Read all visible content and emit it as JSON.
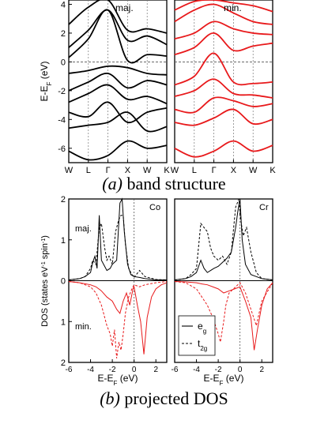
{
  "figure": {
    "panel_a": {
      "caption_label": "(a)",
      "caption_text": "band structure",
      "ylabel_main": "E-E",
      "ylabel_sub": "F",
      "ylabel_unit": " (eV)",
      "left_tag": "maj.",
      "right_tag": "min.",
      "yticks": [
        "-6",
        "-4",
        "-2",
        "0",
        "2",
        "4"
      ],
      "kpoints": [
        "W",
        "L",
        "Γ",
        "X",
        "W",
        "K"
      ],
      "colors": {
        "majority": "#000000",
        "minority": "#e8191b"
      }
    },
    "panel_b": {
      "caption_label": "(b)",
      "caption_text": "projected DOS",
      "ylabel": "DOS (states eV",
      "ylabel_sup1": "-1",
      "ylabel_mid": " spin",
      "ylabel_sup2": "-1",
      "ylabel_end": ")",
      "yticks_top": [
        "0",
        "1",
        "2"
      ],
      "yticks_bottom": [
        "1",
        "2"
      ],
      "xticks": [
        "-6",
        "-4",
        "-2",
        "0",
        "2"
      ],
      "xlabel_main": "E-E",
      "xlabel_sub": "F",
      "xlabel_unit": " (eV)",
      "left_title": "Co",
      "right_title": "Cr",
      "maj_tag": "maj.",
      "min_tag": "min.",
      "legend": [
        {
          "label": "e",
          "sub": "g",
          "style": "solid"
        },
        {
          "label": "t",
          "sub": "2g",
          "style": "dashed"
        }
      ]
    }
  },
  "chart_data": [
    {
      "type": "line",
      "title": "",
      "panel": "majority bands",
      "xlabel": "",
      "ylabel": "E-EF (eV)",
      "ylim": [
        -7,
        4.3
      ],
      "x_ticks": [
        "W",
        "L",
        "Γ",
        "X",
        "W",
        "K"
      ],
      "x_positions": [
        0,
        1,
        2,
        3,
        4,
        5
      ],
      "series": [
        {
          "values": [
            -6.2,
            -6.8,
            -6.5,
            -5.5,
            -6.0,
            -5.8
          ]
        },
        {
          "values": [
            -4.6,
            -4.4,
            -4.2,
            -3.5,
            -4.8,
            -4.5
          ]
        },
        {
          "values": [
            -3.5,
            -3.8,
            -2.8,
            -4.2,
            -3.5,
            -3.2
          ]
        },
        {
          "values": [
            -2.8,
            -2.2,
            -1.6,
            -2.6,
            -2.4,
            -2.9
          ]
        },
        {
          "values": [
            -2.0,
            -1.4,
            -0.8,
            -1.8,
            -1.3,
            -1.6
          ]
        },
        {
          "values": [
            -0.8,
            -0.6,
            -0.3,
            -0.4,
            -0.8,
            -0.9
          ]
        },
        {
          "values": [
            0.3,
            1.6,
            3.6,
            0.1,
            0.5,
            0.4
          ]
        },
        {
          "values": [
            1.0,
            2.2,
            3.6,
            1.5,
            1.8,
            1.2
          ]
        },
        {
          "values": [
            2.6,
            3.8,
            4.3,
            2.2,
            2.3,
            2.0
          ]
        }
      ],
      "fermi_level": 0
    },
    {
      "type": "line",
      "title": "",
      "panel": "minority bands",
      "xlabel": "",
      "ylabel": "",
      "ylim": [
        -7,
        4.3
      ],
      "x_ticks": [
        "W",
        "L",
        "Γ",
        "X",
        "W",
        "K"
      ],
      "x_positions": [
        0,
        1,
        2,
        3,
        4,
        5
      ],
      "series": [
        {
          "values": [
            -6.0,
            -6.6,
            -6.2,
            -5.5,
            -6.2,
            -5.8
          ]
        },
        {
          "values": [
            -4.2,
            -4.4,
            -3.9,
            -3.3,
            -4.3,
            -4.0
          ]
        },
        {
          "values": [
            -3.3,
            -3.5,
            -2.5,
            -2.7,
            -3.1,
            -2.9
          ]
        },
        {
          "values": [
            -2.4,
            -2.0,
            -1.2,
            -2.2,
            -2.3,
            -2.5
          ]
        },
        {
          "values": [
            -1.6,
            -1.0,
            0.6,
            -1.4,
            -1.5,
            -1.4
          ]
        },
        {
          "values": [
            0.5,
            1.0,
            2.0,
            0.8,
            1.1,
            1.3
          ]
        },
        {
          "values": [
            1.6,
            2.0,
            2.8,
            2.3,
            2.0,
            1.9
          ]
        },
        {
          "values": [
            2.8,
            3.6,
            4.0,
            3.4,
            2.8,
            2.6
          ]
        },
        {
          "values": [
            3.6,
            4.2,
            4.3,
            4.1,
            3.9,
            3.5
          ]
        }
      ],
      "fermi_level": 0
    },
    {
      "type": "line",
      "title": "Co",
      "xlabel": "E-EF (eV)",
      "ylabel": "DOS (states eV-1 spin-1)",
      "xlim": [
        -6,
        3
      ],
      "ylim": [
        -2,
        2
      ],
      "series": [
        {
          "name": "eg",
          "style": "solid",
          "spin": "maj",
          "x": [
            -6,
            -5,
            -4.5,
            -4,
            -3.8,
            -3.6,
            -3.4,
            -3.2,
            -3,
            -2.7,
            -2.5,
            -2.2,
            -2,
            -1.6,
            -1.3,
            -1.1,
            -0.9,
            -0.6,
            -0.3,
            0,
            0.5,
            1,
            2,
            3
          ],
          "values": [
            0.02,
            0.05,
            0.1,
            0.2,
            0.45,
            0.6,
            0.3,
            1.6,
            0.5,
            0.35,
            0.25,
            0.3,
            0.4,
            0.5,
            1.9,
            2.0,
            1.2,
            0.4,
            0.15,
            0.1,
            0.08,
            0.05,
            0.02,
            0.02
          ]
        },
        {
          "name": "t2g",
          "style": "dashed",
          "spin": "maj",
          "x": [
            -6,
            -5,
            -4.5,
            -4,
            -3.8,
            -3.5,
            -3.2,
            -3,
            -2.7,
            -2.5,
            -2.3,
            -2,
            -1.7,
            -1.4,
            -1.2,
            -1,
            -0.8,
            -0.5,
            -0.2,
            0,
            0.5,
            1,
            2,
            3
          ],
          "values": [
            0.02,
            0.05,
            0.1,
            0.3,
            0.5,
            0.4,
            1.3,
            1.4,
            0.8,
            0.5,
            0.6,
            0.4,
            1.2,
            1.5,
            1.6,
            1.6,
            0.9,
            0.3,
            0.15,
            0.08,
            0.25,
            0.1,
            0.03,
            0.02
          ]
        },
        {
          "name": "eg",
          "style": "solid",
          "spin": "min",
          "x": [
            -6,
            -5,
            -4,
            -3.5,
            -3,
            -2.5,
            -2,
            -1.6,
            -1.3,
            -1,
            -0.7,
            -0.4,
            -0.1,
            0,
            0.3,
            0.6,
            0.9,
            1.2,
            1.6,
            2,
            2.5,
            3
          ],
          "values": [
            -0.02,
            -0.05,
            -0.1,
            -0.15,
            -0.25,
            -0.4,
            -0.5,
            -0.7,
            -0.8,
            -0.5,
            -0.3,
            -0.6,
            -0.2,
            -0.15,
            -0.6,
            -1.0,
            -1.8,
            -0.9,
            -0.4,
            -0.2,
            -0.1,
            -0.05
          ]
        },
        {
          "name": "t2g",
          "style": "dashed",
          "spin": "min",
          "x": [
            -6,
            -5,
            -4,
            -3.5,
            -3,
            -2.7,
            -2.5,
            -2.2,
            -2,
            -1.8,
            -1.6,
            -1.4,
            -1.2,
            -1,
            -0.8,
            -0.5,
            -0.2,
            0,
            0.5,
            1,
            2,
            3
          ],
          "values": [
            -0.02,
            -0.05,
            -0.15,
            -0.3,
            -0.6,
            -0.9,
            -1.1,
            -1.3,
            -1.6,
            -1.2,
            -1.9,
            -1.5,
            -1.7,
            -1.3,
            -0.8,
            -0.4,
            -0.2,
            -0.1,
            -0.15,
            -0.1,
            -0.05,
            -0.02
          ]
        }
      ],
      "annotations": [
        "maj.",
        "min."
      ]
    },
    {
      "type": "line",
      "title": "Cr",
      "xlabel": "E-EF (eV)",
      "ylabel": "",
      "xlim": [
        -6,
        3
      ],
      "ylim": [
        -2,
        2
      ],
      "series": [
        {
          "name": "eg",
          "style": "solid",
          "spin": "maj",
          "x": [
            -6,
            -5,
            -4.5,
            -4,
            -3.6,
            -3.3,
            -3,
            -2.7,
            -2.4,
            -2,
            -1.6,
            -1.2,
            -0.8,
            -0.4,
            -0.2,
            0,
            0.2,
            0.5,
            1,
            2,
            3
          ],
          "values": [
            0.02,
            0.05,
            0.1,
            0.2,
            0.5,
            0.3,
            0.2,
            0.25,
            0.3,
            0.35,
            0.45,
            0.55,
            0.7,
            1.3,
            1.7,
            2.0,
            1.0,
            0.4,
            0.15,
            0.05,
            0.02
          ]
        },
        {
          "name": "t2g",
          "style": "dashed",
          "spin": "maj",
          "x": [
            -6,
            -5,
            -4.5,
            -4,
            -3.6,
            -3.3,
            -3,
            -2.7,
            -2.4,
            -2,
            -1.6,
            -1.2,
            -0.8,
            -0.4,
            -0.1,
            0,
            0.3,
            0.6,
            1,
            1.5,
            2,
            3
          ],
          "values": [
            0.02,
            0.05,
            0.15,
            0.3,
            1.4,
            1.3,
            1.2,
            0.8,
            0.6,
            0.5,
            0.6,
            0.4,
            0.7,
            1.8,
            2.0,
            1.6,
            1.1,
            1.3,
            0.7,
            0.2,
            0.05,
            0.02
          ]
        },
        {
          "name": "eg",
          "style": "solid",
          "spin": "min",
          "x": [
            -6,
            -5,
            -4,
            -3.5,
            -3,
            -2.5,
            -2,
            -1.5,
            -1,
            -0.5,
            0,
            0.5,
            1,
            1.3,
            1.6,
            2,
            2.5,
            3
          ],
          "values": [
            -0.02,
            -0.03,
            -0.05,
            -0.08,
            -0.1,
            -0.15,
            -0.2,
            -0.3,
            -0.25,
            -0.2,
            -0.15,
            -0.5,
            -0.9,
            -1.7,
            -1.2,
            -0.6,
            -0.2,
            -0.05
          ]
        },
        {
          "name": "t2g",
          "style": "dashed",
          "spin": "min",
          "x": [
            -6,
            -5,
            -4,
            -3.5,
            -3,
            -2.5,
            -2,
            -1.8,
            -1.5,
            -1.3,
            -1,
            -0.6,
            -0.2,
            0,
            0.5,
            1,
            1.5,
            2,
            3
          ],
          "values": [
            -0.02,
            -0.05,
            -0.2,
            -0.4,
            -0.6,
            -0.9,
            -1.3,
            -1.5,
            -1.0,
            -0.6,
            -0.3,
            -0.2,
            -0.1,
            -0.05,
            -0.3,
            -0.7,
            -1.1,
            -0.5,
            -0.05
          ]
        }
      ],
      "legend_position": "bottom-left"
    }
  ]
}
